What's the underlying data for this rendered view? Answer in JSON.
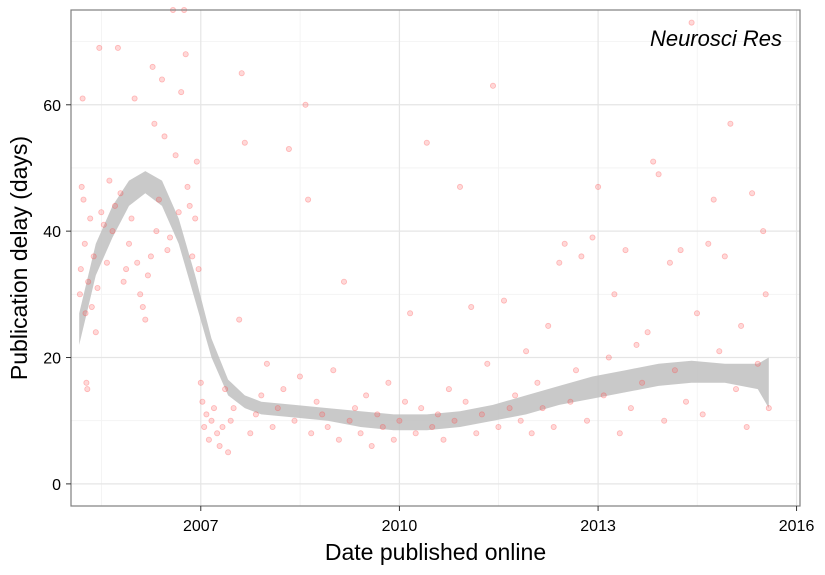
{
  "chart_data": {
    "type": "scatter",
    "title": "",
    "annotation": "Neurosci Res",
    "xlabel": "Date published online",
    "ylabel": "Publication delay (days)",
    "xlim": [
      "2005-01-15",
      "2016-01-20"
    ],
    "ylim": [
      -3.5,
      75
    ],
    "x_ticks": [
      {
        "date": "2007-01-01",
        "label": "2007"
      },
      {
        "date": "2010-01-01",
        "label": "2010"
      },
      {
        "date": "2013-01-01",
        "label": "2013"
      },
      {
        "date": "2016-01-01",
        "label": "2016"
      }
    ],
    "y_ticks": [
      {
        "value": 0,
        "label": "0"
      },
      {
        "value": 20,
        "label": "20"
      },
      {
        "value": 40,
        "label": "40"
      },
      {
        "value": 60,
        "label": "60"
      }
    ],
    "grid": true,
    "point_color": "#ff4d4d",
    "smooth_fill_color": "#bfbfbf",
    "smooth": {
      "x": [
        "2005-03-01",
        "2005-06-01",
        "2005-09-01",
        "2005-12-01",
        "2006-03-01",
        "2006-06-01",
        "2006-09-01",
        "2006-12-01",
        "2007-03-01",
        "2007-06-01",
        "2007-09-01",
        "2007-12-01",
        "2008-06-01",
        "2008-12-01",
        "2009-06-01",
        "2009-12-01",
        "2010-06-01",
        "2010-12-01",
        "2011-06-01",
        "2011-12-01",
        "2012-06-01",
        "2012-12-01",
        "2013-06-01",
        "2013-12-01",
        "2014-06-01",
        "2014-12-01",
        "2015-06-01",
        "2015-08-01"
      ],
      "lower": [
        22,
        33,
        39,
        44,
        46,
        44,
        38,
        29,
        20,
        14,
        12,
        11,
        10.5,
        10,
        9,
        8.5,
        8.5,
        9,
        10,
        11,
        12.5,
        13.5,
        14.5,
        15.5,
        16,
        16,
        15,
        12
      ],
      "upper": [
        27,
        38,
        44,
        48,
        49.5,
        48,
        42,
        33,
        23,
        16.5,
        14,
        13,
        12.5,
        12,
        11.5,
        11,
        11,
        11.5,
        12.5,
        14,
        15.5,
        17,
        18,
        19,
        19.5,
        19,
        19,
        20
      ]
    },
    "points": [
      {
        "x": "2005-03-05",
        "y": 30
      },
      {
        "x": "2005-03-10",
        "y": 34
      },
      {
        "x": "2005-03-15",
        "y": 47
      },
      {
        "x": "2005-03-20",
        "y": 61
      },
      {
        "x": "2005-03-25",
        "y": 45
      },
      {
        "x": "2005-04-01",
        "y": 38
      },
      {
        "x": "2005-04-05",
        "y": 27
      },
      {
        "x": "2005-04-10",
        "y": 16
      },
      {
        "x": "2005-04-15",
        "y": 15
      },
      {
        "x": "2005-04-20",
        "y": 32
      },
      {
        "x": "2005-05-01",
        "y": 42
      },
      {
        "x": "2005-05-10",
        "y": 28
      },
      {
        "x": "2005-05-20",
        "y": 36
      },
      {
        "x": "2005-06-01",
        "y": 24
      },
      {
        "x": "2005-06-10",
        "y": 31
      },
      {
        "x": "2005-06-20",
        "y": 69
      },
      {
        "x": "2005-07-01",
        "y": 43
      },
      {
        "x": "2005-07-15",
        "y": 41
      },
      {
        "x": "2005-08-01",
        "y": 35
      },
      {
        "x": "2005-08-15",
        "y": 48
      },
      {
        "x": "2005-09-01",
        "y": 40
      },
      {
        "x": "2005-09-15",
        "y": 44
      },
      {
        "x": "2005-10-01",
        "y": 69
      },
      {
        "x": "2005-10-15",
        "y": 46
      },
      {
        "x": "2005-11-01",
        "y": 32
      },
      {
        "x": "2005-11-15",
        "y": 34
      },
      {
        "x": "2005-12-01",
        "y": 38
      },
      {
        "x": "2005-12-15",
        "y": 42
      },
      {
        "x": "2006-01-01",
        "y": 61
      },
      {
        "x": "2006-01-15",
        "y": 35
      },
      {
        "x": "2006-02-01",
        "y": 30
      },
      {
        "x": "2006-02-15",
        "y": 28
      },
      {
        "x": "2006-03-01",
        "y": 26
      },
      {
        "x": "2006-03-15",
        "y": 33
      },
      {
        "x": "2006-04-01",
        "y": 36
      },
      {
        "x": "2006-04-10",
        "y": 66
      },
      {
        "x": "2006-04-20",
        "y": 57
      },
      {
        "x": "2006-05-01",
        "y": 40
      },
      {
        "x": "2006-05-15",
        "y": 45
      },
      {
        "x": "2006-06-01",
        "y": 64
      },
      {
        "x": "2006-06-15",
        "y": 55
      },
      {
        "x": "2006-07-01",
        "y": 37
      },
      {
        "x": "2006-07-15",
        "y": 39
      },
      {
        "x": "2006-08-01",
        "y": 75
      },
      {
        "x": "2006-08-15",
        "y": 52
      },
      {
        "x": "2006-09-01",
        "y": 43
      },
      {
        "x": "2006-09-15",
        "y": 62
      },
      {
        "x": "2006-10-01",
        "y": 75
      },
      {
        "x": "2006-10-10",
        "y": 68
      },
      {
        "x": "2006-10-20",
        "y": 47
      },
      {
        "x": "2006-11-01",
        "y": 44
      },
      {
        "x": "2006-11-15",
        "y": 36
      },
      {
        "x": "2006-12-01",
        "y": 42
      },
      {
        "x": "2006-12-10",
        "y": 51
      },
      {
        "x": "2006-12-20",
        "y": 34
      },
      {
        "x": "2007-01-01",
        "y": 16
      },
      {
        "x": "2007-01-10",
        "y": 13
      },
      {
        "x": "2007-01-20",
        "y": 9
      },
      {
        "x": "2007-02-01",
        "y": 11
      },
      {
        "x": "2007-02-15",
        "y": 7
      },
      {
        "x": "2007-03-01",
        "y": 10
      },
      {
        "x": "2007-03-15",
        "y": 12
      },
      {
        "x": "2007-04-01",
        "y": 8
      },
      {
        "x": "2007-04-15",
        "y": 6
      },
      {
        "x": "2007-05-01",
        "y": 9
      },
      {
        "x": "2007-05-15",
        "y": 15
      },
      {
        "x": "2007-06-01",
        "y": 5
      },
      {
        "x": "2007-06-15",
        "y": 10
      },
      {
        "x": "2007-07-01",
        "y": 12
      },
      {
        "x": "2007-08-01",
        "y": 26
      },
      {
        "x": "2007-08-15",
        "y": 65
      },
      {
        "x": "2007-09-01",
        "y": 54
      },
      {
        "x": "2007-10-01",
        "y": 8
      },
      {
        "x": "2007-11-01",
        "y": 11
      },
      {
        "x": "2007-12-01",
        "y": 14
      },
      {
        "x": "2008-01-01",
        "y": 19
      },
      {
        "x": "2008-02-01",
        "y": 9
      },
      {
        "x": "2008-03-01",
        "y": 12
      },
      {
        "x": "2008-04-01",
        "y": 15
      },
      {
        "x": "2008-05-01",
        "y": 53
      },
      {
        "x": "2008-06-01",
        "y": 10
      },
      {
        "x": "2008-07-01",
        "y": 17
      },
      {
        "x": "2008-08-01",
        "y": 60
      },
      {
        "x": "2008-08-15",
        "y": 45
      },
      {
        "x": "2008-09-01",
        "y": 8
      },
      {
        "x": "2008-10-01",
        "y": 13
      },
      {
        "x": "2008-11-01",
        "y": 11
      },
      {
        "x": "2008-12-01",
        "y": 9
      },
      {
        "x": "2009-01-01",
        "y": 18
      },
      {
        "x": "2009-02-01",
        "y": 7
      },
      {
        "x": "2009-03-01",
        "y": 32
      },
      {
        "x": "2009-04-01",
        "y": 10
      },
      {
        "x": "2009-05-01",
        "y": 12
      },
      {
        "x": "2009-06-01",
        "y": 8
      },
      {
        "x": "2009-07-01",
        "y": 14
      },
      {
        "x": "2009-08-01",
        "y": 6
      },
      {
        "x": "2009-09-01",
        "y": 11
      },
      {
        "x": "2009-10-01",
        "y": 9
      },
      {
        "x": "2009-11-01",
        "y": 16
      },
      {
        "x": "2009-12-01",
        "y": 7
      },
      {
        "x": "2010-01-01",
        "y": 10
      },
      {
        "x": "2010-02-01",
        "y": 13
      },
      {
        "x": "2010-03-01",
        "y": 27
      },
      {
        "x": "2010-04-01",
        "y": 8
      },
      {
        "x": "2010-05-01",
        "y": 12
      },
      {
        "x": "2010-06-01",
        "y": 54
      },
      {
        "x": "2010-07-01",
        "y": 9
      },
      {
        "x": "2010-08-01",
        "y": 11
      },
      {
        "x": "2010-09-01",
        "y": 7
      },
      {
        "x": "2010-10-01",
        "y": 15
      },
      {
        "x": "2010-11-01",
        "y": 10
      },
      {
        "x": "2010-12-01",
        "y": 47
      },
      {
        "x": "2011-01-01",
        "y": 13
      },
      {
        "x": "2011-02-01",
        "y": 28
      },
      {
        "x": "2011-03-01",
        "y": 8
      },
      {
        "x": "2011-04-01",
        "y": 11
      },
      {
        "x": "2011-05-01",
        "y": 19
      },
      {
        "x": "2011-06-01",
        "y": 63
      },
      {
        "x": "2011-07-01",
        "y": 9
      },
      {
        "x": "2011-08-01",
        "y": 29
      },
      {
        "x": "2011-09-01",
        "y": 12
      },
      {
        "x": "2011-10-01",
        "y": 14
      },
      {
        "x": "2011-11-01",
        "y": 10
      },
      {
        "x": "2011-12-01",
        "y": 21
      },
      {
        "x": "2012-01-01",
        "y": 8
      },
      {
        "x": "2012-02-01",
        "y": 16
      },
      {
        "x": "2012-03-01",
        "y": 12
      },
      {
        "x": "2012-04-01",
        "y": 25
      },
      {
        "x": "2012-05-01",
        "y": 9
      },
      {
        "x": "2012-06-01",
        "y": 35
      },
      {
        "x": "2012-07-01",
        "y": 38
      },
      {
        "x": "2012-08-01",
        "y": 13
      },
      {
        "x": "2012-09-01",
        "y": 18
      },
      {
        "x": "2012-10-01",
        "y": 36
      },
      {
        "x": "2012-11-01",
        "y": 10
      },
      {
        "x": "2012-12-01",
        "y": 39
      },
      {
        "x": "2013-01-01",
        "y": 47
      },
      {
        "x": "2013-02-01",
        "y": 14
      },
      {
        "x": "2013-03-01",
        "y": 20
      },
      {
        "x": "2013-04-01",
        "y": 30
      },
      {
        "x": "2013-05-01",
        "y": 8
      },
      {
        "x": "2013-06-01",
        "y": 37
      },
      {
        "x": "2013-07-01",
        "y": 12
      },
      {
        "x": "2013-08-01",
        "y": 22
      },
      {
        "x": "2013-09-01",
        "y": 16
      },
      {
        "x": "2013-10-01",
        "y": 24
      },
      {
        "x": "2013-11-01",
        "y": 51
      },
      {
        "x": "2013-12-01",
        "y": 49
      },
      {
        "x": "2014-01-01",
        "y": 10
      },
      {
        "x": "2014-02-01",
        "y": 35
      },
      {
        "x": "2014-03-01",
        "y": 18
      },
      {
        "x": "2014-04-01",
        "y": 37
      },
      {
        "x": "2014-05-01",
        "y": 13
      },
      {
        "x": "2014-06-01",
        "y": 73
      },
      {
        "x": "2014-07-01",
        "y": 27
      },
      {
        "x": "2014-08-01",
        "y": 11
      },
      {
        "x": "2014-09-01",
        "y": 38
      },
      {
        "x": "2014-10-01",
        "y": 45
      },
      {
        "x": "2014-11-01",
        "y": 21
      },
      {
        "x": "2014-12-01",
        "y": 36
      },
      {
        "x": "2015-01-01",
        "y": 57
      },
      {
        "x": "2015-02-01",
        "y": 15
      },
      {
        "x": "2015-03-01",
        "y": 25
      },
      {
        "x": "2015-04-01",
        "y": 9
      },
      {
        "x": "2015-05-01",
        "y": 46
      },
      {
        "x": "2015-06-01",
        "y": 19
      },
      {
        "x": "2015-07-01",
        "y": 40
      },
      {
        "x": "2015-07-15",
        "y": 30
      },
      {
        "x": "2015-08-01",
        "y": 12
      }
    ]
  }
}
